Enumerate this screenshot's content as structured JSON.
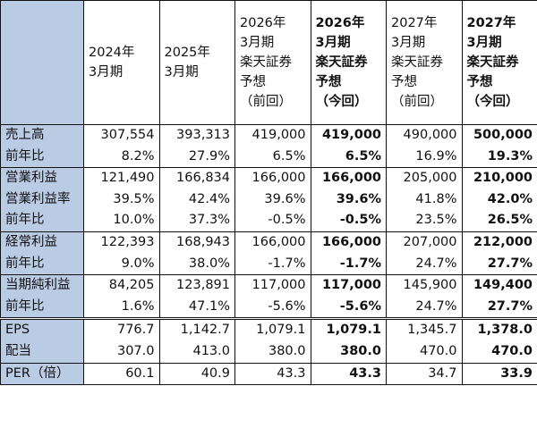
{
  "header": {
    "c1": [
      "2024年",
      "3月期"
    ],
    "c2": [
      "2025年",
      "3月期"
    ],
    "c3": [
      "2026年",
      "3月期",
      "楽天証券",
      "予想",
      "（前回）"
    ],
    "c4": [
      "2026年",
      "3月期",
      "楽天証券",
      "予想",
      "（今回）"
    ],
    "c5": [
      "2027年",
      "3月期",
      "楽天証券",
      "予想",
      "（前回）"
    ],
    "c6": [
      "2027年",
      "3月期",
      "楽天証券",
      "予想",
      "（今回）"
    ]
  },
  "rows": [
    {
      "label": "売上高",
      "v": [
        "307,554",
        "393,313",
        "419,000",
        "419,000",
        "490,000",
        "500,000"
      ]
    },
    {
      "label": "前年比",
      "v": [
        "8.2%",
        "27.9%",
        "6.5%",
        "6.5%",
        "16.9%",
        "19.3%"
      ]
    },
    {
      "label": "営業利益",
      "v": [
        "121,490",
        "166,834",
        "166,000",
        "166,000",
        "205,000",
        "210,000"
      ]
    },
    {
      "label": "営業利益率",
      "v": [
        "39.5%",
        "42.4%",
        "39.6%",
        "39.6%",
        "41.8%",
        "42.0%"
      ]
    },
    {
      "label": "前年比",
      "v": [
        "10.0%",
        "37.3%",
        "-0.5%",
        "-0.5%",
        "23.5%",
        "26.5%"
      ]
    },
    {
      "label": "経常利益",
      "v": [
        "122,393",
        "168,943",
        "166,000",
        "166,000",
        "207,000",
        "212,000"
      ]
    },
    {
      "label": "前年比",
      "v": [
        "9.0%",
        "38.0%",
        "-1.7%",
        "-1.7%",
        "24.7%",
        "27.7%"
      ]
    },
    {
      "label": "当期純利益",
      "v": [
        "84,205",
        "123,891",
        "117,000",
        "117,000",
        "145,900",
        "149,400"
      ]
    },
    {
      "label": "前年比",
      "v": [
        "1.6%",
        "47.1%",
        "-5.6%",
        "-5.6%",
        "24.7%",
        "27.7%"
      ]
    },
    {
      "label": "EPS",
      "v": [
        "776.7",
        "1,142.7",
        "1,079.1",
        "1,079.1",
        "1,345.7",
        "1,378.0"
      ]
    },
    {
      "label": "配当",
      "v": [
        "307.0",
        "413.0",
        "380.0",
        "380.0",
        "470.0",
        "470.0"
      ]
    },
    {
      "label": "PER（倍）",
      "v": [
        "60.1",
        "40.9",
        "43.3",
        "43.3",
        "34.7",
        "33.9"
      ]
    }
  ],
  "colors": {
    "label_bg": "#b9cce4",
    "border": "#111111"
  }
}
